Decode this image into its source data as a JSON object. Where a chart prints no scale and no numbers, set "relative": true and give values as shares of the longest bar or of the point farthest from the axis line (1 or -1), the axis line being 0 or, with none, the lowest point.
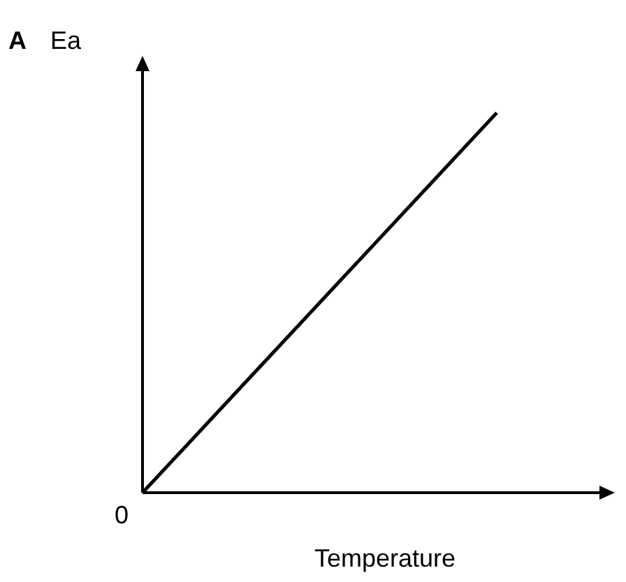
{
  "chart_data": {
    "type": "line",
    "title": "A",
    "xlabel": "Temperature",
    "ylabel": "Ea",
    "annotations": [
      "0"
    ],
    "categories": [
      null,
      null,
      null,
      null,
      null
    ],
    "series": [
      {
        "color": "#000000",
        "values": [
          0,
          0.3333,
          0.6667,
          1,
          null
        ]
      }
    ],
    "relative": true,
    "marker": "none",
    "legend": false
  }
}
